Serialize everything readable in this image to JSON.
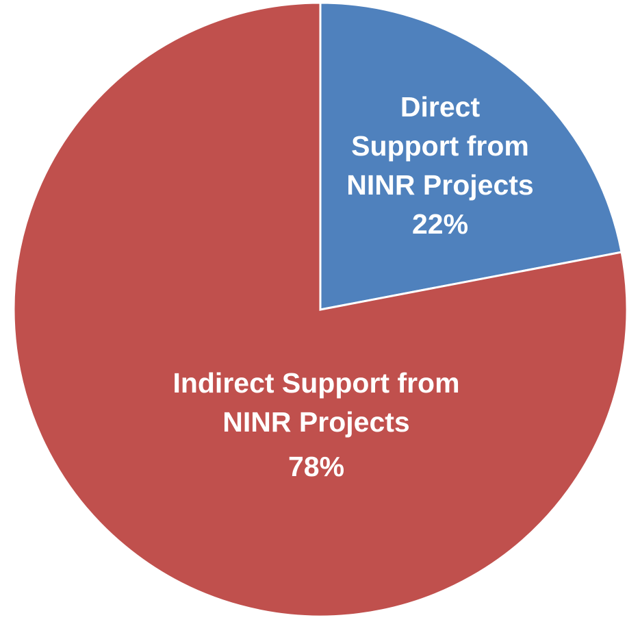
{
  "chart_data": {
    "type": "pie",
    "categories": [
      "Direct Support from NINR Projects",
      "Indirect Support from NINR Projects"
    ],
    "values": [
      22,
      78
    ],
    "value_labels": [
      "22%",
      "78%"
    ],
    "colors": [
      "#4f81bd",
      "#c0504d"
    ]
  }
}
